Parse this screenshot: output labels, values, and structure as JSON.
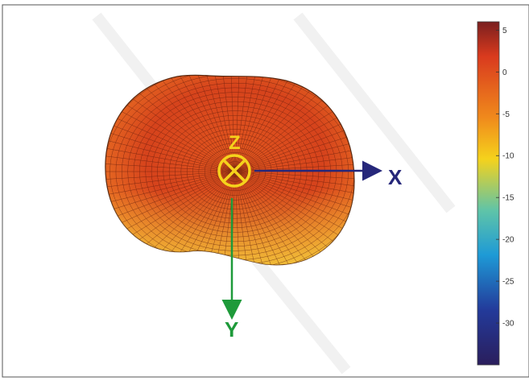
{
  "axes": {
    "x_label": "X",
    "y_label": "Y",
    "z_label": "Z",
    "x_color": "#26277a",
    "y_color": "#1e9a3a",
    "z_color": "#f5d21c"
  },
  "colorbar": {
    "min": -35,
    "max": 6,
    "ticks": [
      "5",
      "0",
      "-5",
      "-10",
      "-15",
      "-20",
      "-25",
      "-30"
    ],
    "tick_values": [
      5,
      0,
      -5,
      -10,
      -15,
      -20,
      -25,
      -30
    ],
    "colormap": "parula-jet",
    "colors": [
      "#7a1f1f",
      "#d93a1e",
      "#f08a1c",
      "#f5d21c",
      "#5fc4a8",
      "#1e9ad6",
      "#233a9a",
      "#2a1e5c"
    ]
  },
  "pattern": {
    "surface_colors": [
      "#c4311a",
      "#e2571f",
      "#f0a431",
      "#f1c43a"
    ]
  }
}
